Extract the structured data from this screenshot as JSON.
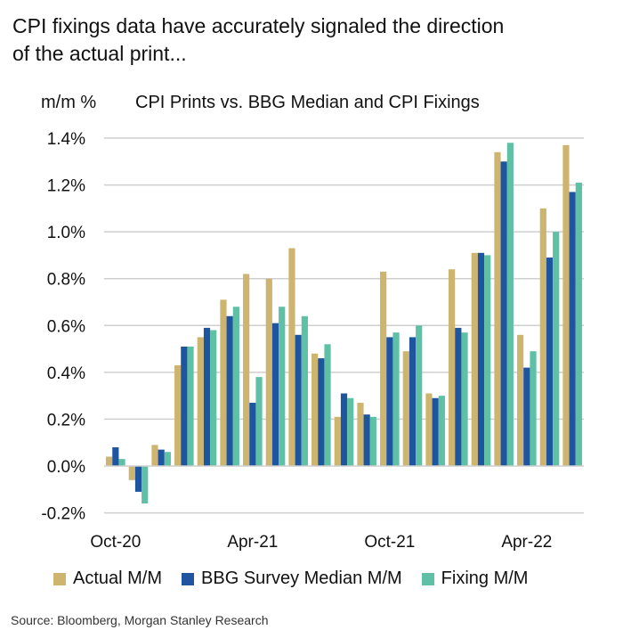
{
  "headline": "CPI fixings data have accurately signaled the direction of the actual print...",
  "source": "Source: Bloomberg, Morgan Stanley Research",
  "chart_data": {
    "type": "bar",
    "title": "CPI Prints vs. BBG Median and CPI Fixings",
    "ylabel": "m/m %",
    "xlabel": "",
    "ylim": [
      -0.2,
      1.4
    ],
    "yticks": [
      "-0.2%",
      "0.0%",
      "0.2%",
      "0.4%",
      "0.6%",
      "0.8%",
      "1.0%",
      "1.2%",
      "1.4%"
    ],
    "ytick_values": [
      -0.2,
      0,
      0.2,
      0.4,
      0.6,
      0.8,
      1.0,
      1.2,
      1.4
    ],
    "grid": true,
    "legend_position": "bottom",
    "categories": [
      "Oct-20",
      "Nov-20",
      "Dec-20",
      "Jan-21",
      "Feb-21",
      "Mar-21",
      "Apr-21",
      "May-21",
      "Jun-21",
      "Jul-21",
      "Aug-21",
      "Sep-21",
      "Oct-21",
      "Nov-21",
      "Dec-21",
      "Jan-22",
      "Feb-22",
      "Mar-22",
      "Apr-22",
      "May-22",
      "Jun-22"
    ],
    "xtick_labels": [
      {
        "index": 0,
        "label": "Oct-20"
      },
      {
        "index": 6,
        "label": "Apr-21"
      },
      {
        "index": 12,
        "label": "Oct-21"
      },
      {
        "index": 18,
        "label": "Apr-22"
      }
    ],
    "series": [
      {
        "name": "Actual M/M",
        "color": "#CDB56F",
        "values": [
          0.04,
          -0.06,
          0.09,
          0.43,
          0.55,
          0.71,
          0.82,
          0.8,
          0.93,
          0.48,
          0.21,
          0.27,
          0.83,
          0.49,
          0.31,
          0.84,
          0.91,
          1.34,
          0.56,
          1.1,
          1.37
        ]
      },
      {
        "name": "BBG Survey Median M/M",
        "color": "#1F559E",
        "values": [
          0.08,
          -0.11,
          0.07,
          0.51,
          0.59,
          0.64,
          0.27,
          0.61,
          0.56,
          0.46,
          0.31,
          0.22,
          0.55,
          0.55,
          0.29,
          0.59,
          0.91,
          1.3,
          0.42,
          0.89,
          1.17
        ]
      },
      {
        "name": "Fixing M/M",
        "color": "#5EC1A5",
        "values": [
          0.03,
          -0.16,
          0.06,
          0.51,
          0.58,
          0.68,
          0.38,
          0.68,
          0.64,
          0.52,
          0.29,
          0.21,
          0.57,
          0.6,
          0.3,
          0.57,
          0.9,
          1.38,
          0.49,
          1.0,
          1.21
        ]
      }
    ]
  }
}
